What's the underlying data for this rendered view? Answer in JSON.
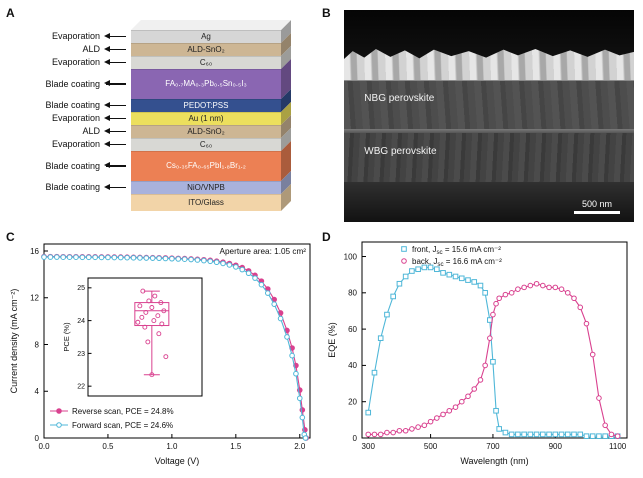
{
  "panels": {
    "a": "A",
    "b": "B",
    "c": "C",
    "d": "D"
  },
  "panel_a": {
    "layers": [
      {
        "process": "Evaporation",
        "name": "Ag",
        "color": "#d6d6d6",
        "text": "#222",
        "h": 13
      },
      {
        "process": "ALD",
        "name": "ALD-SnO₂",
        "color": "#cdb694",
        "text": "#222",
        "h": 13
      },
      {
        "process": "Evaporation",
        "name": "C₆₀",
        "color": "#d8d8d4",
        "text": "#222",
        "h": 13
      },
      {
        "process": "Blade coating",
        "name": "FA₀.₇MA₀.₃Pb₀.₅Sn₀.₅I₃",
        "color": "#8a66b2",
        "text": "#ffffff",
        "h": 30
      },
      {
        "process": "Blade coating",
        "name": "PEDOT:PSS",
        "color": "#34508f",
        "text": "#ffffff",
        "h": 13
      },
      {
        "process": "Evaporation",
        "name": "Au (1 nm)",
        "color": "#ecdf5d",
        "text": "#222",
        "h": 13
      },
      {
        "process": "ALD",
        "name": "ALD-SnO₂",
        "color": "#cdb694",
        "text": "#222",
        "h": 13
      },
      {
        "process": "Evaporation",
        "name": "C₆₀",
        "color": "#d8d8d4",
        "text": "#222",
        "h": 13
      },
      {
        "process": "Blade coating",
        "name": "Cs₀.₃₅FA₀.₆₅PbI₁.₈Br₁.₂",
        "color": "#ec8054",
        "text": "#ffffff",
        "h": 30
      },
      {
        "process": "Blade coating",
        "name": "NiO/VNPB",
        "color": "#a9b2dc",
        "text": "#222",
        "h": 13
      },
      {
        "process": "",
        "name": "ITO/Glass",
        "color": "#f2d4a8",
        "text": "#222",
        "h": 17
      }
    ]
  },
  "panel_b": {
    "nbg_label": "NBG perovskite",
    "wbg_label": "WBG perovskite",
    "scale_text": "500 nm"
  },
  "chart_data": [
    {
      "panel": "C",
      "type": "line",
      "xlabel": "Voltage (V)",
      "ylabel": "Current density (mA cm⁻²)",
      "annotation": "Aperture area: 1.05 cm²",
      "xlim": [
        0,
        2.08
      ],
      "ylim": [
        0,
        16.6
      ],
      "xticks": [
        0,
        0.5,
        1,
        1.5,
        2
      ],
      "yticks": [
        0,
        4,
        8,
        12,
        16
      ],
      "legend_position": "bottom-left",
      "grid": false,
      "series": [
        {
          "name": "Reverse scan, PCE = 24.8%",
          "color": "#d9418f",
          "marker": "circle-filled",
          "points": [
            [
              0.0,
              15.52
            ],
            [
              0.05,
              15.52
            ],
            [
              0.1,
              15.52
            ],
            [
              0.15,
              15.51
            ],
            [
              0.2,
              15.51
            ],
            [
              0.25,
              15.51
            ],
            [
              0.3,
              15.5
            ],
            [
              0.35,
              15.5
            ],
            [
              0.4,
              15.5
            ],
            [
              0.45,
              15.49
            ],
            [
              0.5,
              15.49
            ],
            [
              0.55,
              15.48
            ],
            [
              0.6,
              15.48
            ],
            [
              0.65,
              15.47
            ],
            [
              0.7,
              15.46
            ],
            [
              0.75,
              15.45
            ],
            [
              0.8,
              15.44
            ],
            [
              0.85,
              15.43
            ],
            [
              0.9,
              15.42
            ],
            [
              0.95,
              15.41
            ],
            [
              1.0,
              15.39
            ],
            [
              1.05,
              15.37
            ],
            [
              1.1,
              15.35
            ],
            [
              1.15,
              15.32
            ],
            [
              1.2,
              15.29
            ],
            [
              1.25,
              15.25
            ],
            [
              1.3,
              15.2
            ],
            [
              1.35,
              15.13
            ],
            [
              1.4,
              15.04
            ],
            [
              1.45,
              14.93
            ],
            [
              1.5,
              14.78
            ],
            [
              1.55,
              14.58
            ],
            [
              1.6,
              14.3
            ],
            [
              1.65,
              13.92
            ],
            [
              1.7,
              13.42
            ],
            [
              1.75,
              12.75
            ],
            [
              1.8,
              11.85
            ],
            [
              1.85,
              10.7
            ],
            [
              1.9,
              9.2
            ],
            [
              1.94,
              7.7
            ],
            [
              1.97,
              6.2
            ],
            [
              2.0,
              4.1
            ],
            [
              2.02,
              2.4
            ],
            [
              2.04,
              0.7
            ],
            [
              2.05,
              0.0
            ]
          ]
        },
        {
          "name": "Forward scan, PCE = 24.6%",
          "color": "#4fb7d8",
          "marker": "circle-open",
          "points": [
            [
              0.0,
              15.48
            ],
            [
              0.05,
              15.48
            ],
            [
              0.1,
              15.48
            ],
            [
              0.15,
              15.47
            ],
            [
              0.2,
              15.47
            ],
            [
              0.25,
              15.47
            ],
            [
              0.3,
              15.46
            ],
            [
              0.35,
              15.46
            ],
            [
              0.4,
              15.46
            ],
            [
              0.45,
              15.45
            ],
            [
              0.5,
              15.45
            ],
            [
              0.55,
              15.44
            ],
            [
              0.6,
              15.44
            ],
            [
              0.65,
              15.43
            ],
            [
              0.7,
              15.42
            ],
            [
              0.75,
              15.41
            ],
            [
              0.8,
              15.4
            ],
            [
              0.85,
              15.39
            ],
            [
              0.9,
              15.38
            ],
            [
              0.95,
              15.36
            ],
            [
              1.0,
              15.34
            ],
            [
              1.05,
              15.32
            ],
            [
              1.1,
              15.3
            ],
            [
              1.15,
              15.27
            ],
            [
              1.2,
              15.23
            ],
            [
              1.25,
              15.18
            ],
            [
              1.3,
              15.12
            ],
            [
              1.35,
              15.04
            ],
            [
              1.4,
              14.94
            ],
            [
              1.45,
              14.81
            ],
            [
              1.5,
              14.64
            ],
            [
              1.55,
              14.41
            ],
            [
              1.6,
              14.1
            ],
            [
              1.65,
              13.68
            ],
            [
              1.7,
              13.12
            ],
            [
              1.75,
              12.4
            ],
            [
              1.8,
              11.45
            ],
            [
              1.85,
              10.22
            ],
            [
              1.9,
              8.65
            ],
            [
              1.94,
              7.05
            ],
            [
              1.97,
              5.5
            ],
            [
              2.0,
              3.4
            ],
            [
              2.02,
              1.75
            ],
            [
              2.035,
              0.3
            ],
            [
              2.045,
              0.0
            ]
          ]
        }
      ],
      "inset": {
        "ylabel": "PCE (%)",
        "ylim": [
          21.7,
          25.3
        ],
        "yticks": [
          22,
          23,
          24,
          25
        ],
        "color": "#d9418f",
        "box": {
          "q1": 23.85,
          "median": 24.3,
          "q3": 24.55,
          "whisker_low": 22.35,
          "whisker_high": 24.9
        },
        "points": [
          24.9,
          24.75,
          24.6,
          24.55,
          24.45,
          24.4,
          24.3,
          24.25,
          24.15,
          24.1,
          24.0,
          23.95,
          23.9,
          23.8,
          23.6,
          23.35,
          22.9,
          22.35
        ]
      }
    },
    {
      "panel": "D",
      "type": "line",
      "xlabel": "Wavelength (nm)",
      "ylabel": "EQE (%)",
      "xlim": [
        280,
        1130
      ],
      "ylim": [
        0,
        108
      ],
      "xticks": [
        300,
        500,
        700,
        900,
        1100
      ],
      "yticks": [
        0,
        20,
        40,
        60,
        80,
        100
      ],
      "legend_position": "top-left",
      "grid": false,
      "series": [
        {
          "name_pre": "front, J",
          "name_sub": "sc",
          "name_post": " = 15.6 mA cm⁻²",
          "color": "#4fb7d8",
          "marker": "square-open",
          "points": [
            [
              300,
              14
            ],
            [
              320,
              36
            ],
            [
              340,
              55
            ],
            [
              360,
              68
            ],
            [
              380,
              78
            ],
            [
              400,
              85
            ],
            [
              420,
              89
            ],
            [
              440,
              92
            ],
            [
              460,
              93
            ],
            [
              480,
              94
            ],
            [
              500,
              94
            ],
            [
              520,
              93
            ],
            [
              540,
              91
            ],
            [
              560,
              90
            ],
            [
              580,
              89
            ],
            [
              600,
              88
            ],
            [
              620,
              87
            ],
            [
              640,
              86
            ],
            [
              660,
              84
            ],
            [
              675,
              80
            ],
            [
              690,
              65
            ],
            [
              700,
              42
            ],
            [
              710,
              15
            ],
            [
              720,
              5
            ],
            [
              740,
              3
            ],
            [
              760,
              2
            ],
            [
              780,
              2
            ],
            [
              800,
              2
            ],
            [
              820,
              2
            ],
            [
              840,
              2
            ],
            [
              860,
              2
            ],
            [
              880,
              2
            ],
            [
              900,
              2
            ],
            [
              920,
              2
            ],
            [
              940,
              2
            ],
            [
              960,
              2
            ],
            [
              980,
              2
            ],
            [
              1000,
              1
            ],
            [
              1020,
              1
            ],
            [
              1040,
              1
            ],
            [
              1060,
              1
            ],
            [
              1080,
              1
            ],
            [
              1100,
              1
            ]
          ]
        },
        {
          "name_pre": "back, J",
          "name_sub": "sc",
          "name_post": " = 16.6 mA cm⁻²",
          "color": "#d9418f",
          "marker": "circle-open",
          "points": [
            [
              300,
              2
            ],
            [
              320,
              2
            ],
            [
              340,
              2
            ],
            [
              360,
              3
            ],
            [
              380,
              3
            ],
            [
              400,
              4
            ],
            [
              420,
              4
            ],
            [
              440,
              5
            ],
            [
              460,
              6
            ],
            [
              480,
              7
            ],
            [
              500,
              9
            ],
            [
              520,
              11
            ],
            [
              540,
              13
            ],
            [
              560,
              15
            ],
            [
              580,
              17
            ],
            [
              600,
              20
            ],
            [
              620,
              23
            ],
            [
              640,
              27
            ],
            [
              660,
              32
            ],
            [
              675,
              40
            ],
            [
              690,
              55
            ],
            [
              700,
              68
            ],
            [
              710,
              74
            ],
            [
              720,
              77
            ],
            [
              740,
              79
            ],
            [
              760,
              80
            ],
            [
              780,
              82
            ],
            [
              800,
              83
            ],
            [
              820,
              84
            ],
            [
              840,
              85
            ],
            [
              860,
              84
            ],
            [
              880,
              83
            ],
            [
              900,
              83
            ],
            [
              920,
              82
            ],
            [
              940,
              80
            ],
            [
              960,
              77
            ],
            [
              980,
              72
            ],
            [
              1000,
              63
            ],
            [
              1020,
              46
            ],
            [
              1040,
              22
            ],
            [
              1060,
              7
            ],
            [
              1080,
              2
            ],
            [
              1100,
              1
            ]
          ]
        }
      ]
    }
  ]
}
